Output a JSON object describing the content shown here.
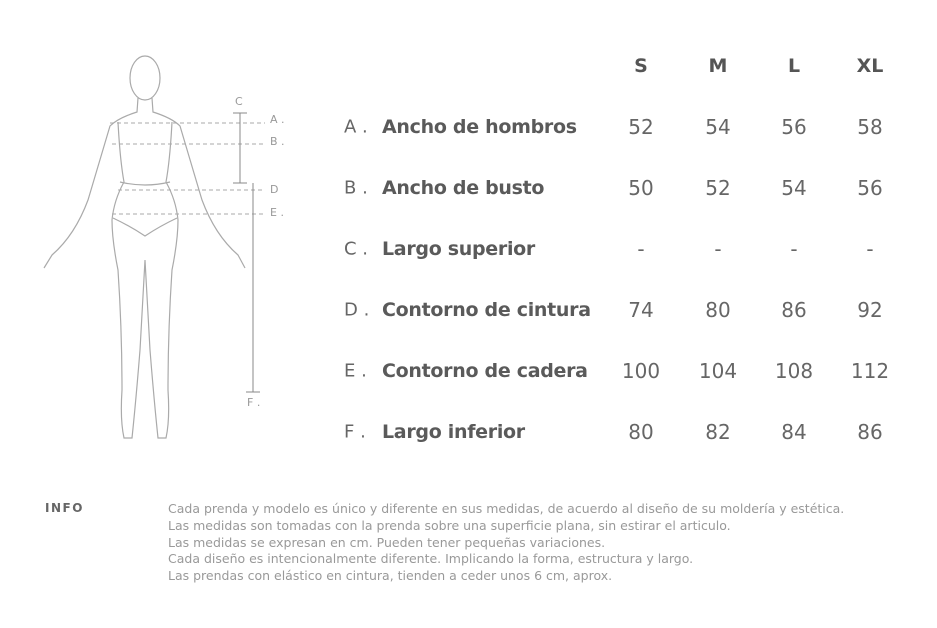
{
  "figure": {
    "labels": {
      "a": "A .",
      "b": "B .",
      "c": "C",
      "d": "D",
      "e": "E .",
      "f": "F ."
    }
  },
  "table": {
    "headers": [
      "S",
      "M",
      "L",
      "XL"
    ],
    "rows": [
      {
        "letter": "A .",
        "name": "Ancho de hombros",
        "values": [
          52,
          54,
          56,
          58
        ]
      },
      {
        "letter": "B .",
        "name": "Ancho de busto",
        "values": [
          50,
          52,
          54,
          56
        ]
      },
      {
        "letter": "C .",
        "name": "Largo superior",
        "values": [
          "-",
          "-",
          "-",
          "-"
        ]
      },
      {
        "letter": "D .",
        "name": "Contorno de cintura",
        "values": [
          74,
          80,
          86,
          92
        ]
      },
      {
        "letter": "E .",
        "name": "Contorno de cadera",
        "values": [
          100,
          104,
          108,
          112
        ]
      },
      {
        "letter": "F .",
        "name": "Largo inferior",
        "values": [
          80,
          82,
          84,
          86
        ]
      }
    ]
  },
  "info": {
    "label": "INFO",
    "lines": [
      "Cada prenda y modelo es único y diferente en sus medidas, de acuerdo al diseño de su moldería y estética.",
      "Las medidas son tomadas con la prenda sobre una superficie plana, sin estirar el articulo.",
      "Las medidas se expresan en cm. Pueden tener pequeñas variaciones.",
      "Cada diseño es intencionalmente diferente. Implicando la forma, estructura y largo.",
      "Las prendas con elástico en cintura, tienden a ceder unos 6 cm, aprox."
    ]
  }
}
